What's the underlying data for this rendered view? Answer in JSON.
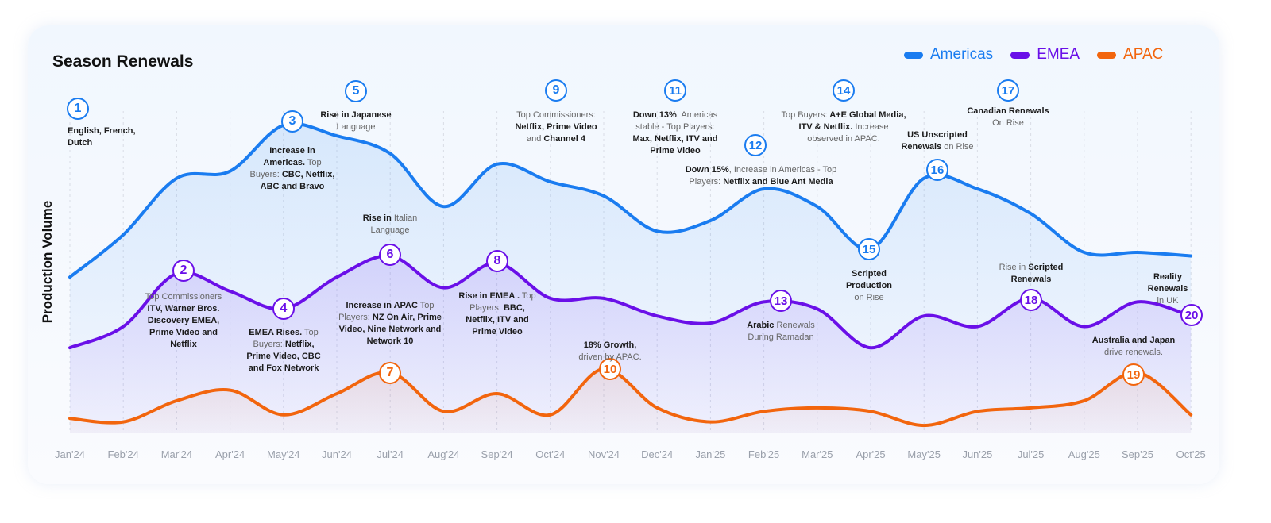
{
  "chart_data": {
    "type": "line",
    "title": "Season Renewals",
    "xlabel": "",
    "ylabel": "Production Volume",
    "ylim": [
      0,
      100
    ],
    "grid": "vertical dashed",
    "legend_position": "top-right",
    "x": [
      "Jan'24",
      "Feb'24",
      "Mar'24",
      "Apr'24",
      "May'24",
      "Jun'24",
      "Jul'24",
      "Aug'24",
      "Sep'24",
      "Oct'24",
      "Nov'24",
      "Dec'24",
      "Jan'25",
      "Feb'25",
      "Mar'25",
      "Apr'25",
      "May'25",
      "Jun'25",
      "Jul'25",
      "Aug'25",
      "Sep'25",
      "Oct'25"
    ],
    "series": [
      {
        "name": "Americas",
        "color": "#1a7cf0",
        "values": [
          44,
          56,
          72,
          74,
          87,
          84,
          79,
          64,
          76,
          71,
          67,
          57,
          60,
          69,
          64,
          52,
          72,
          69,
          62,
          51,
          51,
          50
        ]
      },
      {
        "name": "EMEA",
        "color": "#6a0fe8",
        "values": [
          24,
          30,
          45,
          40,
          35,
          44,
          50,
          41,
          48,
          38,
          38,
          33,
          31,
          37,
          35,
          24,
          33,
          30,
          38,
          30,
          37,
          33
        ]
      },
      {
        "name": "APAC",
        "color": "#f2650d",
        "values": [
          4,
          3,
          9,
          12,
          5,
          11,
          17,
          6,
          11,
          5,
          18,
          7,
          3,
          6,
          7,
          6,
          2,
          6,
          7,
          9,
          17,
          5
        ]
      }
    ],
    "annotations": [
      {
        "n": "1",
        "series": "Americas",
        "text": [
          {
            "t": "English, French, Dutch",
            "b": true
          }
        ]
      },
      {
        "n": "2",
        "series": "EMEA",
        "text": [
          {
            "t": "Top Commissioners ",
            "b": false
          },
          {
            "t": "ITV, Warner Bros. Discovery EMEA, Prime Video and Netflix",
            "b": true
          }
        ]
      },
      {
        "n": "3",
        "series": "Americas",
        "text": [
          {
            "t": "Increase in Americas.",
            "b": true
          },
          {
            "t": " Top Buyers:",
            "b": false
          },
          {
            "t": " CBC, Netflix, ABC and Bravo",
            "b": true
          }
        ]
      },
      {
        "n": "4",
        "series": "EMEA",
        "text": [
          {
            "t": "EMEA Rises.",
            "b": true
          },
          {
            "t": " Top Buyers:",
            "b": false
          },
          {
            "t": " Netflix, Prime Video, CBC and Fox Network",
            "b": true
          }
        ]
      },
      {
        "n": "5",
        "series": "Americas",
        "text": [
          {
            "t": "Rise in Japanese",
            "b": true
          },
          {
            "t": " Language",
            "b": false
          }
        ]
      },
      {
        "n": "6",
        "series": "EMEA",
        "text": [
          {
            "t": "Rise in",
            "b": true
          },
          {
            "t": " Italian Language",
            "b": false
          }
        ]
      },
      {
        "n": "7",
        "series": "APAC",
        "text": [
          {
            "t": "Increase in APAC",
            "b": true
          },
          {
            "t": " Top Players:",
            "b": false
          },
          {
            "t": " NZ On Air, Prime Video, Nine Network and Network 10",
            "b": true
          }
        ]
      },
      {
        "n": "8",
        "series": "EMEA",
        "text": [
          {
            "t": "Rise in EMEA .",
            "b": true
          },
          {
            "t": " Top Players:",
            "b": false
          },
          {
            "t": " BBC, Netflix, ITV and Prime Video",
            "b": true
          }
        ]
      },
      {
        "n": "9",
        "series": "Americas",
        "text": [
          {
            "t": "Top Commissioners:",
            "b": false
          },
          {
            "t": " Netflix, Prime Video",
            "b": true
          },
          {
            "t": " and ",
            "b": false
          },
          {
            "t": "Channel 4",
            "b": true
          }
        ]
      },
      {
        "n": "10",
        "series": "APAC",
        "text": [
          {
            "t": "18% Growth,",
            "b": true
          },
          {
            "t": " driven by APAC.",
            "b": false
          }
        ]
      },
      {
        "n": "11",
        "series": "Americas",
        "text": [
          {
            "t": "Down 13%",
            "b": true
          },
          {
            "t": ", Americas stable -  Top Players:",
            "b": false
          },
          {
            "t": " Max, Netflix, ITV and Prime Video",
            "b": true
          }
        ]
      },
      {
        "n": "12",
        "series": "Americas",
        "text": [
          {
            "t": "Down 15%",
            "b": true
          },
          {
            "t": ", Increase in Americas - Top Players:",
            "b": false
          },
          {
            "t": " Netflix and Blue Ant Media",
            "b": true
          }
        ]
      },
      {
        "n": "13",
        "series": "EMEA",
        "text": [
          {
            "t": "Arabic",
            "b": true
          },
          {
            "t": " Renewals During Ramadan",
            "b": false
          }
        ]
      },
      {
        "n": "14",
        "series": "Americas",
        "text": [
          {
            "t": "Top Buyers:",
            "b": false
          },
          {
            "t": " A+E Global Media, ITV & Netflix.",
            "b": true
          },
          {
            "t": " Increase observed in APAC.",
            "b": false
          }
        ]
      },
      {
        "n": "15",
        "series": "Americas",
        "text": [
          {
            "t": "Scripted Production",
            "b": true
          },
          {
            "t": " on Rise",
            "b": false
          }
        ]
      },
      {
        "n": "16",
        "series": "Americas",
        "text": [
          {
            "t": "US Unscripted Renewals",
            "b": true
          },
          {
            "t": " on Rise",
            "b": false
          }
        ]
      },
      {
        "n": "17",
        "series": "Americas",
        "text": [
          {
            "t": "Canadian Renewals",
            "b": true
          },
          {
            "t": " On Rise",
            "b": false
          }
        ]
      },
      {
        "n": "18",
        "series": "EMEA",
        "text": [
          {
            "t": "Rise in",
            "b": false
          },
          {
            "t": " Scripted Renewals",
            "b": true
          }
        ]
      },
      {
        "n": "19",
        "series": "APAC",
        "text": [
          {
            "t": "Australia and Japan",
            "b": true
          },
          {
            "t": " drive renewals.",
            "b": false
          }
        ]
      },
      {
        "n": "20",
        "series": "EMEA",
        "text": [
          {
            "t": "Reality Renewals",
            "b": true
          },
          {
            "t": " in UK",
            "b": false
          }
        ]
      }
    ]
  }
}
